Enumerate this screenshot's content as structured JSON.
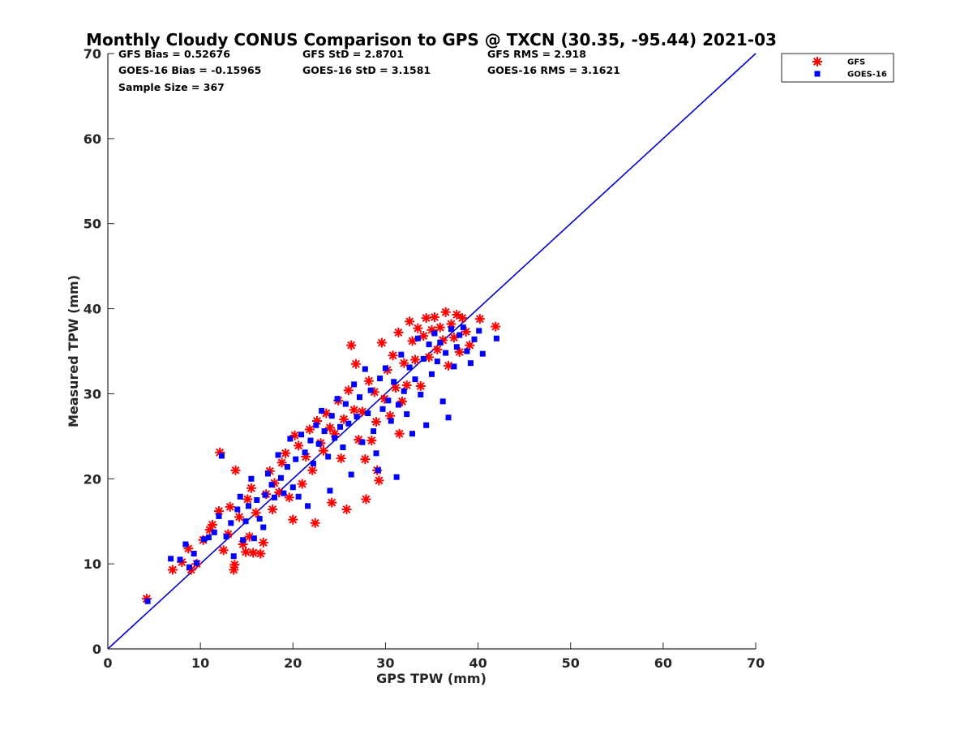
{
  "chart_data": {
    "type": "scatter",
    "title": "Monthly Cloudy CONUS Comparison to GPS @ TXCN (30.35, -95.44) 2021-03",
    "xlabel": "GPS TPW (mm)",
    "ylabel": "Measured TPW (mm)",
    "xlim": [
      0,
      70
    ],
    "ylim": [
      0,
      70
    ],
    "x_ticks": [
      0,
      10,
      20,
      30,
      40,
      50,
      60,
      70
    ],
    "y_ticks": [
      0,
      10,
      20,
      30,
      40,
      50,
      60,
      70
    ],
    "legend_position": "top-right outside",
    "stats": [
      [
        "GFS Bias = 0.52676",
        "GFS StD = 2.8701",
        "GFS RMS = 2.918"
      ],
      [
        "GOES-16 Bias = -0.15965",
        "GOES-16 StD = 3.1581",
        "GOES-16 RMS = 3.1621"
      ],
      [
        "Sample Size = 367"
      ]
    ],
    "reference_line": {
      "x": [
        0,
        70
      ],
      "y": [
        0,
        70
      ],
      "color": "#0000cc"
    },
    "series": [
      {
        "name": "GFS",
        "marker": "asterisk",
        "color": "#ff0000",
        "points": [
          [
            4.2,
            5.9
          ],
          [
            7.0,
            9.3
          ],
          [
            8.0,
            10.2
          ],
          [
            8.7,
            11.8
          ],
          [
            9.0,
            9.3
          ],
          [
            9.6,
            10.0
          ],
          [
            10.3,
            12.8
          ],
          [
            11.0,
            14.0
          ],
          [
            11.3,
            14.6
          ],
          [
            12.0,
            16.2
          ],
          [
            12.1,
            23.1
          ],
          [
            12.5,
            11.6
          ],
          [
            13.0,
            13.5
          ],
          [
            13.2,
            16.7
          ],
          [
            13.6,
            9.3
          ],
          [
            13.7,
            9.9
          ],
          [
            13.8,
            21.0
          ],
          [
            14.2,
            15.5
          ],
          [
            14.6,
            12.3
          ],
          [
            14.9,
            11.4
          ],
          [
            15.1,
            17.6
          ],
          [
            15.3,
            13.2
          ],
          [
            15.5,
            18.9
          ],
          [
            15.7,
            11.3
          ],
          [
            16.0,
            16.0
          ],
          [
            16.5,
            11.2
          ],
          [
            16.8,
            12.5
          ],
          [
            17.1,
            18.2
          ],
          [
            17.5,
            20.9
          ],
          [
            17.8,
            16.4
          ],
          [
            18.0,
            19.5
          ],
          [
            18.5,
            18.4
          ],
          [
            18.8,
            21.9
          ],
          [
            19.2,
            23.0
          ],
          [
            19.6,
            17.8
          ],
          [
            20.0,
            15.2
          ],
          [
            20.2,
            25.1
          ],
          [
            20.6,
            23.9
          ],
          [
            21.0,
            19.4
          ],
          [
            21.4,
            22.6
          ],
          [
            21.8,
            25.8
          ],
          [
            22.1,
            21.0
          ],
          [
            22.4,
            14.8
          ],
          [
            22.6,
            26.8
          ],
          [
            23.0,
            24.2
          ],
          [
            23.3,
            23.3
          ],
          [
            23.6,
            27.7
          ],
          [
            24.0,
            26.0
          ],
          [
            24.2,
            17.2
          ],
          [
            24.5,
            25.3
          ],
          [
            24.9,
            29.2
          ],
          [
            25.2,
            22.4
          ],
          [
            25.5,
            27.0
          ],
          [
            25.8,
            16.4
          ],
          [
            26.0,
            30.4
          ],
          [
            26.3,
            35.7
          ],
          [
            26.6,
            28.1
          ],
          [
            26.8,
            33.5
          ],
          [
            27.1,
            24.6
          ],
          [
            27.5,
            27.9
          ],
          [
            27.8,
            22.3
          ],
          [
            27.9,
            17.6
          ],
          [
            28.2,
            31.5
          ],
          [
            28.5,
            24.5
          ],
          [
            28.8,
            30.2
          ],
          [
            29.0,
            26.7
          ],
          [
            29.1,
            21.0
          ],
          [
            29.3,
            19.8
          ],
          [
            29.6,
            36.0
          ],
          [
            29.9,
            29.4
          ],
          [
            30.2,
            32.8
          ],
          [
            30.5,
            27.4
          ],
          [
            30.8,
            34.5
          ],
          [
            31.1,
            30.7
          ],
          [
            31.4,
            37.2
          ],
          [
            31.5,
            25.3
          ],
          [
            31.8,
            29.1
          ],
          [
            32.0,
            33.6
          ],
          [
            32.3,
            31.0
          ],
          [
            32.6,
            38.5
          ],
          [
            32.9,
            36.2
          ],
          [
            33.2,
            34.0
          ],
          [
            33.5,
            37.7
          ],
          [
            33.8,
            30.9
          ],
          [
            34.1,
            36.8
          ],
          [
            34.4,
            38.9
          ],
          [
            34.7,
            34.3
          ],
          [
            35.0,
            37.5
          ],
          [
            35.3,
            39.0
          ],
          [
            35.6,
            35.2
          ],
          [
            35.9,
            37.8
          ],
          [
            36.2,
            36.3
          ],
          [
            36.5,
            39.6
          ],
          [
            36.8,
            33.3
          ],
          [
            37.1,
            38.2
          ],
          [
            37.4,
            36.6
          ],
          [
            37.7,
            39.3
          ],
          [
            38.0,
            34.9
          ],
          [
            38.3,
            38.9
          ],
          [
            38.7,
            37.3
          ],
          [
            39.1,
            35.7
          ],
          [
            40.2,
            38.8
          ],
          [
            41.9,
            37.9
          ]
        ]
      },
      {
        "name": "GOES-16",
        "marker": "square",
        "color": "#0000ff",
        "points": [
          [
            4.3,
            5.6
          ],
          [
            6.8,
            10.6
          ],
          [
            7.8,
            10.5
          ],
          [
            8.4,
            12.3
          ],
          [
            8.8,
            9.6
          ],
          [
            9.3,
            11.2
          ],
          [
            9.6,
            10.1
          ],
          [
            10.4,
            12.9
          ],
          [
            10.9,
            13.1
          ],
          [
            11.5,
            13.7
          ],
          [
            12.0,
            15.6
          ],
          [
            12.3,
            22.7
          ],
          [
            12.8,
            13.2
          ],
          [
            13.3,
            14.8
          ],
          [
            13.6,
            10.9
          ],
          [
            14.0,
            16.4
          ],
          [
            14.3,
            17.9
          ],
          [
            14.6,
            12.8
          ],
          [
            14.9,
            15.0
          ],
          [
            15.2,
            16.8
          ],
          [
            15.5,
            20.0
          ],
          [
            15.8,
            13.0
          ],
          [
            16.1,
            17.5
          ],
          [
            16.4,
            15.3
          ],
          [
            16.8,
            14.3
          ],
          [
            17.0,
            18.1
          ],
          [
            17.3,
            20.6
          ],
          [
            17.7,
            19.3
          ],
          [
            18.0,
            17.8
          ],
          [
            18.4,
            22.8
          ],
          [
            18.7,
            20.1
          ],
          [
            19.0,
            18.3
          ],
          [
            19.4,
            21.4
          ],
          [
            19.7,
            24.7
          ],
          [
            20.0,
            19.0
          ],
          [
            20.3,
            22.3
          ],
          [
            20.6,
            17.9
          ],
          [
            20.9,
            25.2
          ],
          [
            21.3,
            23.1
          ],
          [
            21.6,
            16.8
          ],
          [
            21.9,
            24.5
          ],
          [
            22.2,
            21.8
          ],
          [
            22.5,
            26.3
          ],
          [
            22.8,
            24.1
          ],
          [
            23.1,
            28.0
          ],
          [
            23.4,
            25.6
          ],
          [
            23.8,
            22.6
          ],
          [
            24.0,
            18.6
          ],
          [
            24.2,
            27.4
          ],
          [
            24.5,
            24.8
          ],
          [
            24.8,
            29.4
          ],
          [
            25.1,
            26.1
          ],
          [
            25.4,
            23.7
          ],
          [
            25.7,
            28.8
          ],
          [
            26.0,
            26.5
          ],
          [
            26.3,
            20.5
          ],
          [
            26.6,
            31.1
          ],
          [
            26.9,
            27.3
          ],
          [
            27.2,
            29.6
          ],
          [
            27.5,
            24.3
          ],
          [
            27.8,
            32.9
          ],
          [
            28.1,
            27.7
          ],
          [
            28.4,
            30.4
          ],
          [
            28.7,
            25.6
          ],
          [
            29.0,
            23.0
          ],
          [
            29.2,
            21.0
          ],
          [
            29.4,
            31.8
          ],
          [
            29.7,
            28.2
          ],
          [
            30.0,
            33.0
          ],
          [
            30.3,
            29.2
          ],
          [
            30.6,
            26.8
          ],
          [
            30.9,
            31.4
          ],
          [
            31.2,
            20.2
          ],
          [
            31.4,
            28.7
          ],
          [
            31.7,
            34.6
          ],
          [
            32.0,
            30.3
          ],
          [
            32.3,
            27.6
          ],
          [
            32.6,
            33.1
          ],
          [
            32.9,
            25.3
          ],
          [
            33.2,
            31.7
          ],
          [
            33.5,
            36.5
          ],
          [
            33.8,
            29.9
          ],
          [
            34.1,
            34.1
          ],
          [
            34.4,
            26.3
          ],
          [
            34.7,
            35.8
          ],
          [
            35.0,
            32.3
          ],
          [
            35.3,
            37.1
          ],
          [
            35.6,
            33.8
          ],
          [
            35.9,
            36.0
          ],
          [
            36.2,
            29.1
          ],
          [
            36.5,
            34.8
          ],
          [
            36.8,
            27.2
          ],
          [
            37.1,
            37.6
          ],
          [
            37.4,
            33.2
          ],
          [
            37.7,
            35.5
          ],
          [
            38.0,
            36.9
          ],
          [
            38.4,
            37.8
          ],
          [
            38.8,
            35.0
          ],
          [
            39.2,
            33.6
          ],
          [
            39.6,
            36.4
          ],
          [
            40.1,
            37.4
          ],
          [
            40.5,
            34.7
          ],
          [
            42.0,
            36.5
          ]
        ]
      }
    ]
  }
}
